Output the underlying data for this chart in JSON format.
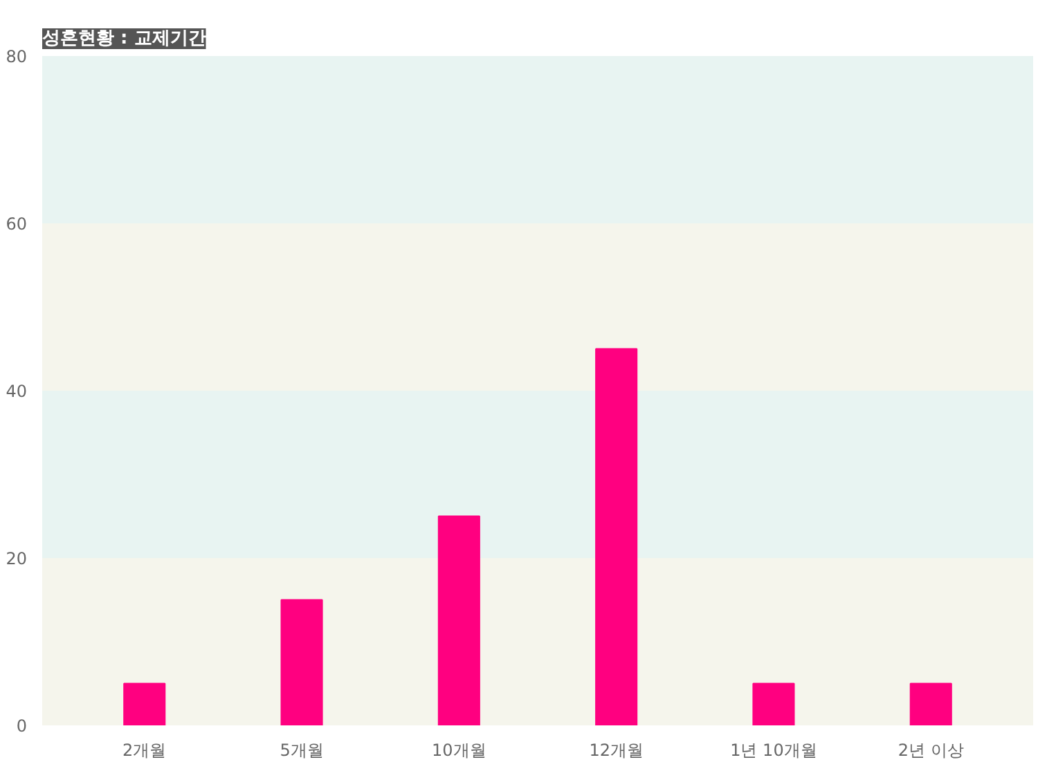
{
  "chart_data": {
    "type": "bar",
    "title": "성혼현황 : 교제기간",
    "categories": [
      "2개월",
      "5개월",
      "10개월",
      "12개월",
      "1년 10개월",
      "2년 이상"
    ],
    "values": [
      5,
      15,
      25,
      45,
      5,
      5
    ],
    "color": "#ff0080",
    "ylim": [
      0,
      80
    ],
    "yticks": [
      0,
      20,
      40,
      60,
      80
    ],
    "bands": [
      {
        "axis": "y",
        "from": 0,
        "to": 20,
        "color": "#f5f5ec"
      },
      {
        "axis": "y",
        "from": 20,
        "to": 40,
        "color": "#e8f4f2"
      },
      {
        "axis": "y",
        "from": 40,
        "to": 60,
        "color": "#f5f5ec"
      },
      {
        "axis": "y",
        "from": 60,
        "to": 80,
        "color": "#e8f4f2"
      }
    ]
  }
}
